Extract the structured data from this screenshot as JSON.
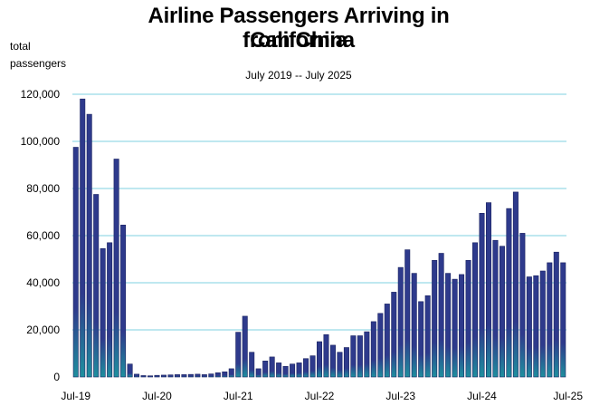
{
  "chart_data": {
    "type": "bar",
    "title_lines": [
      "Airline Passengers Arriving in California",
      "from China"
    ],
    "subtitle": "July 2019 -- July 2025",
    "ylabel_lines": [
      "total",
      "passengers"
    ],
    "xlabel": "",
    "ylim": [
      0,
      120000
    ],
    "yticks": [
      0,
      20000,
      40000,
      60000,
      80000,
      100000,
      120000
    ],
    "ytick_labels": [
      "0",
      "20,000",
      "40,000",
      "60,000",
      "80,000",
      "100,000",
      "120,000"
    ],
    "xtick_labels": [
      "Jul-19",
      "Jul-20",
      "Jul-21",
      "Jul-22",
      "Jul-23",
      "Jul-24",
      "Jul-25"
    ],
    "grid": true,
    "bar_color": "#2e3a8c",
    "bar_gradient_bottom": "#1f8f9e",
    "gridline_color": "#7fd0e0",
    "categories": [
      "Jul-19",
      "Aug-19",
      "Sep-19",
      "Oct-19",
      "Nov-19",
      "Dec-19",
      "Jan-20",
      "Feb-20",
      "Mar-20",
      "Apr-20",
      "May-20",
      "Jun-20",
      "Jul-20",
      "Aug-20",
      "Sep-20",
      "Oct-20",
      "Nov-20",
      "Dec-20",
      "Jan-21",
      "Feb-21",
      "Mar-21",
      "Apr-21",
      "May-21",
      "Jun-21",
      "Jul-21",
      "Aug-21",
      "Sep-21",
      "Oct-21",
      "Nov-21",
      "Dec-21",
      "Jan-22",
      "Feb-22",
      "Mar-22",
      "Apr-22",
      "May-22",
      "Jun-22",
      "Jul-22",
      "Aug-22",
      "Sep-22",
      "Oct-22",
      "Nov-22",
      "Dec-22",
      "Jan-23",
      "Feb-23",
      "Mar-23",
      "Apr-23",
      "May-23",
      "Jun-23",
      "Jul-23",
      "Aug-23",
      "Sep-23",
      "Oct-23",
      "Nov-23",
      "Dec-23",
      "Jan-24",
      "Feb-24",
      "Mar-24",
      "Apr-24",
      "May-24",
      "Jun-24",
      "Jul-24",
      "Aug-24",
      "Sep-24",
      "Oct-24",
      "Nov-24",
      "Dec-24",
      "Jan-25",
      "Feb-25",
      "Mar-25",
      "Apr-25",
      "May-25",
      "Jun-25",
      "Jul-25"
    ],
    "values": [
      97500,
      118000,
      111500,
      77500,
      54500,
      57000,
      92500,
      64500,
      5500,
      1200,
      600,
      500,
      700,
      800,
      900,
      1000,
      1000,
      1100,
      1200,
      1000,
      1300,
      1800,
      2200,
      3500,
      19000,
      25800,
      10500,
      3500,
      6800,
      8500,
      6000,
      4500,
      5500,
      6000,
      7800,
      9000,
      15000,
      18000,
      13500,
      10500,
      12500,
      17500,
      17500,
      19200,
      23500,
      27000,
      31000,
      36000,
      46500,
      54000,
      44000,
      32000,
      34500,
      49500,
      52500,
      44000,
      41500,
      43500,
      49500,
      57000,
      69500,
      74000,
      58000,
      55500,
      71500,
      78500,
      61000,
      42500,
      43000,
      45000,
      48500,
      53000,
      48500
    ]
  }
}
